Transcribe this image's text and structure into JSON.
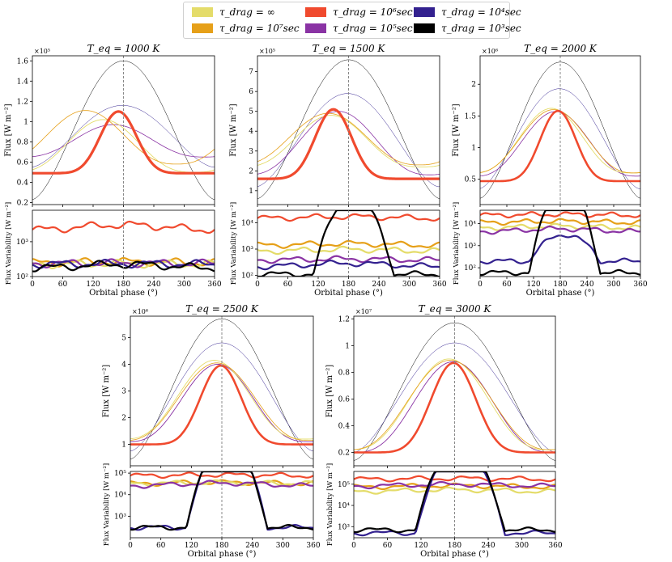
{
  "legend": {
    "entries": [
      {
        "name": "tau_inf",
        "label": "τ_drag = ∞",
        "color": "#e4dc6a"
      },
      {
        "name": "tau_1e7",
        "label": "τ_drag = 10⁷sec",
        "color": "#e6a019"
      },
      {
        "name": "tau_1e6",
        "label": "τ_drag = 10⁶sec",
        "color": "#f04a2e"
      },
      {
        "name": "tau_1e5",
        "label": "τ_drag = 10⁵sec",
        "color": "#8a33a4"
      },
      {
        "name": "tau_1e4",
        "label": "τ_drag = 10⁴sec",
        "color": "#33218f"
      },
      {
        "name": "tau_1e3",
        "label": "τ_drag = 10³sec",
        "color": "#000000"
      }
    ]
  },
  "chart_data": [
    {
      "type": "line",
      "panel": "flux",
      "title": "T_eq = 1000 K",
      "ylabel": "Flux [W m⁻²]",
      "xlabel": "",
      "multiplier": "×10⁵",
      "xlim": [
        0,
        360
      ],
      "ylim": [
        0.18,
        1.65
      ],
      "xticks": [
        "0",
        "60",
        "120",
        "180",
        "240",
        "300",
        "360"
      ],
      "yticks": [
        0.2,
        0.4,
        0.6,
        0.8,
        1.0,
        1.2,
        1.4,
        1.6
      ],
      "vline": 180,
      "series": [
        {
          "name": "τ=10³",
          "color": "#000000",
          "min": 0.23,
          "max": 1.6,
          "peak": 180,
          "width": 0.5
        },
        {
          "name": "τ=10⁴",
          "color": "#33218f",
          "min": 0.55,
          "max": 1.16,
          "peak": 178,
          "width": 0.5
        },
        {
          "name": "τ=10⁵",
          "color": "#8a33a4",
          "min": 0.65,
          "max": 0.97,
          "peak": 160,
          "width": 0.8
        },
        {
          "name": "τ=∞",
          "color": "#e4dc6a",
          "min": 0.5,
          "max": 1.02,
          "peak": 140,
          "width": 0.9
        },
        {
          "name": "τ=10⁷",
          "color": "#e6a019",
          "min": 0.58,
          "max": 1.11,
          "peak": 105,
          "width": 0.8
        },
        {
          "name": "τ=10⁶",
          "color": "#f04a2e",
          "min": 0.49,
          "max": 1.1,
          "peak": 170,
          "width": 3.2
        }
      ]
    },
    {
      "type": "line",
      "panel": "variability",
      "title": "",
      "ylabel": "Flux Variability [W m⁻²]",
      "xlabel": "Orbital phase (°)",
      "xlim": [
        0,
        360
      ],
      "ylim": [
        100,
        8000
      ],
      "scale": "log",
      "xticks": [
        "0",
        "60",
        "120",
        "180",
        "240",
        "300",
        "360"
      ],
      "yticks": [
        {
          "v": 100,
          "label": "10²"
        },
        {
          "v": 1000,
          "label": "10³"
        }
      ],
      "vline": 180,
      "series": [
        {
          "name": "τ=10⁶",
          "color": "#f04a2e",
          "base": 2600,
          "amp": 0.7,
          "width": 2.2
        },
        {
          "name": "τ=10⁷",
          "color": "#e6a019",
          "base": 260,
          "amp": 0.15,
          "width": 2.2
        },
        {
          "name": "τ=∞",
          "color": "#e4dc6a",
          "base": 230,
          "amp": 0.1,
          "width": 2.2
        },
        {
          "name": "τ=10⁵",
          "color": "#8a33a4",
          "base": 240,
          "amp": 0.05,
          "width": 2.2
        },
        {
          "name": "τ=10⁴",
          "color": "#33218f",
          "base": 230,
          "amp": 0.05,
          "width": 2.2
        },
        {
          "name": "τ=10³",
          "color": "#000000",
          "base": 200,
          "amp": 0.5,
          "width": 2.2
        }
      ]
    },
    {
      "type": "line",
      "panel": "flux",
      "title": "T_eq = 1500 K",
      "ylabel": "Flux [W m⁻²]",
      "xlabel": "",
      "multiplier": "×10⁵",
      "xlim": [
        0,
        360
      ],
      "ylim": [
        0.3,
        7.8
      ],
      "xticks": [
        "0",
        "60",
        "120",
        "180",
        "240",
        "300",
        "360"
      ],
      "yticks": [
        1,
        2,
        3,
        4,
        5,
        6,
        7
      ],
      "vline": 180,
      "series": [
        {
          "name": "τ=10³",
          "color": "#000000",
          "min": 0.6,
          "max": 7.6,
          "peak": 180,
          "width": 0.5
        },
        {
          "name": "τ=10⁴",
          "color": "#33218f",
          "min": 1.2,
          "max": 5.9,
          "peak": 178,
          "width": 0.5
        },
        {
          "name": "τ=10⁵",
          "color": "#8a33a4",
          "min": 1.8,
          "max": 5.0,
          "peak": 160,
          "width": 0.8
        },
        {
          "name": "τ=∞",
          "color": "#e4dc6a",
          "min": 2.2,
          "max": 4.8,
          "peak": 145,
          "width": 0.9
        },
        {
          "name": "τ=10⁷",
          "color": "#e6a019",
          "min": 2.3,
          "max": 4.9,
          "peak": 140,
          "width": 0.8
        },
        {
          "name": "τ=10⁶",
          "color": "#f04a2e",
          "min": 1.6,
          "max": 5.1,
          "peak": 150,
          "width": 3.2
        }
      ]
    },
    {
      "type": "line",
      "panel": "variability",
      "title": "",
      "ylabel": "Flux Variability [W m⁻²]",
      "xlabel": "Orbital phase (°)",
      "xlim": [
        0,
        360
      ],
      "ylim": [
        90,
        30000
      ],
      "scale": "log",
      "xticks": [
        "0",
        "60",
        "120",
        "180",
        "240",
        "300",
        "360"
      ],
      "yticks": [
        {
          "v": 100,
          "label": "10²"
        },
        {
          "v": 1000,
          "label": "10³"
        },
        {
          "v": 10000,
          "label": "10⁴"
        }
      ],
      "vline": 180,
      "series": [
        {
          "name": "τ=10⁶",
          "color": "#f04a2e",
          "base": 16000,
          "amp": 0.3,
          "width": 2.2
        },
        {
          "name": "τ=10⁷",
          "color": "#e6a019",
          "base": 1500,
          "amp": 0.3,
          "width": 2.2
        },
        {
          "name": "τ=∞",
          "color": "#e4dc6a",
          "base": 900,
          "amp": 0.3,
          "width": 2.2
        },
        {
          "name": "τ=10⁵",
          "color": "#8a33a4",
          "base": 400,
          "amp": 0.2,
          "width": 2.2
        },
        {
          "name": "τ=10⁴",
          "color": "#33218f",
          "base": 250,
          "amp": 0.6,
          "width": 2.2
        },
        {
          "name": "τ=10³",
          "color": "#000000",
          "base": 110,
          "amp": 3.0,
          "width": 2.2
        }
      ]
    },
    {
      "type": "line",
      "panel": "flux",
      "title": "T_eq = 2000 K",
      "ylabel": "Flux [W m⁻²]",
      "xlabel": "",
      "multiplier": "×10⁶",
      "xlim": [
        0,
        360
      ],
      "ylim": [
        0.1,
        2.45
      ],
      "xticks": [
        "0",
        "60",
        "120",
        "180",
        "240",
        "300",
        "360"
      ],
      "yticks": [
        0.5,
        1.0,
        1.5,
        2.0
      ],
      "vline": 180,
      "series": [
        {
          "name": "τ=10³",
          "color": "#000000",
          "min": 0.2,
          "max": 2.35,
          "peak": 180,
          "width": 0.5
        },
        {
          "name": "τ=10⁴",
          "color": "#33218f",
          "min": 0.35,
          "max": 1.93,
          "peak": 178,
          "width": 0.5
        },
        {
          "name": "τ=10⁵",
          "color": "#8a33a4",
          "min": 0.55,
          "max": 1.57,
          "peak": 170,
          "width": 0.8
        },
        {
          "name": "τ=∞",
          "color": "#e4dc6a",
          "min": 0.6,
          "max": 1.62,
          "peak": 160,
          "width": 0.9
        },
        {
          "name": "τ=10⁷",
          "color": "#e6a019",
          "min": 0.6,
          "max": 1.6,
          "peak": 165,
          "width": 0.8
        },
        {
          "name": "τ=10⁶",
          "color": "#f04a2e",
          "min": 0.47,
          "max": 1.58,
          "peak": 175,
          "width": 2.6
        }
      ]
    },
    {
      "type": "line",
      "panel": "variability",
      "title": "",
      "ylabel": "Flux Variability [W m⁻²]",
      "xlabel": "Orbital phase (°)",
      "xlim": [
        0,
        360
      ],
      "ylim": [
        40,
        40000
      ],
      "scale": "log",
      "xticks": [
        "0",
        "60",
        "120",
        "180",
        "240",
        "300",
        "360"
      ],
      "yticks": [
        {
          "v": 100,
          "label": "10²"
        },
        {
          "v": 1000,
          "label": "10³"
        },
        {
          "v": 10000,
          "label": "10⁴"
        }
      ],
      "vline": 180,
      "series": [
        {
          "name": "τ=10⁶",
          "color": "#f04a2e",
          "base": 25000,
          "amp": 0.2,
          "width": 2.2
        },
        {
          "name": "τ=10⁷",
          "color": "#e6a019",
          "base": 12000,
          "amp": 0.3,
          "width": 2.2
        },
        {
          "name": "τ=∞",
          "color": "#e4dc6a",
          "base": 7000,
          "amp": 0.4,
          "width": 2.2
        },
        {
          "name": "τ=10⁵",
          "color": "#8a33a4",
          "base": 5000,
          "amp": 0.6,
          "width": 2.2
        },
        {
          "name": "τ=10⁴",
          "color": "#33218f",
          "base": 200,
          "amp": 1.2,
          "width": 2.2
        },
        {
          "name": "τ=10³",
          "color": "#000000",
          "base": 60,
          "amp": 4.0,
          "width": 2.2
        }
      ]
    },
    {
      "type": "line",
      "panel": "flux",
      "title": "T_eq = 2500 K",
      "ylabel": "Flux [W m⁻²]",
      "xlabel": "",
      "multiplier": "×10⁶",
      "xlim": [
        0,
        360
      ],
      "ylim": [
        0.2,
        5.8
      ],
      "xticks": [
        "0",
        "60",
        "120",
        "180",
        "240",
        "300",
        "360"
      ],
      "yticks": [
        1,
        2,
        3,
        4,
        5
      ],
      "vline": 180,
      "series": [
        {
          "name": "τ=10³",
          "color": "#000000",
          "min": 0.45,
          "max": 5.7,
          "peak": 180,
          "width": 0.5
        },
        {
          "name": "τ=10⁴",
          "color": "#33218f",
          "min": 0.75,
          "max": 4.8,
          "peak": 180,
          "width": 0.5
        },
        {
          "name": "τ=10⁵",
          "color": "#8a33a4",
          "min": 1.1,
          "max": 4.0,
          "peak": 172,
          "width": 0.9
        },
        {
          "name": "τ=∞",
          "color": "#e4dc6a",
          "min": 1.2,
          "max": 4.15,
          "peak": 165,
          "width": 0.9
        },
        {
          "name": "τ=10⁷",
          "color": "#e6a019",
          "min": 1.15,
          "max": 4.05,
          "peak": 170,
          "width": 0.8
        },
        {
          "name": "τ=10⁶",
          "color": "#f04a2e",
          "min": 1.0,
          "max": 3.95,
          "peak": 178,
          "width": 2.6
        }
      ]
    },
    {
      "type": "line",
      "panel": "variability",
      "title": "",
      "ylabel": "Flux Variability [W m⁻²]",
      "xlabel": "Orbital phase (°)",
      "xlim": [
        0,
        360
      ],
      "ylim": [
        100,
        120000
      ],
      "scale": "log",
      "xticks": [
        "0",
        "60",
        "120",
        "180",
        "240",
        "300",
        "360"
      ],
      "yticks": [
        {
          "v": 1000,
          "label": "10³"
        },
        {
          "v": 10000,
          "label": "10⁴"
        },
        {
          "v": 100000,
          "label": "10⁵"
        }
      ],
      "vline": 180,
      "series": [
        {
          "name": "τ=10⁶",
          "color": "#f04a2e",
          "base": 80000,
          "amp": 0.2,
          "width": 2.2
        },
        {
          "name": "τ=10⁷",
          "color": "#e6a019",
          "base": 35000,
          "amp": 0.3,
          "width": 2.2
        },
        {
          "name": "τ=∞",
          "color": "#e4dc6a",
          "base": 35000,
          "amp": 0.2,
          "width": 2.2
        },
        {
          "name": "τ=10⁵",
          "color": "#8a33a4",
          "base": 30000,
          "amp": 0.6,
          "width": 2.2
        },
        {
          "name": "τ=10⁴",
          "color": "#33218f",
          "base": 300,
          "amp": 4.0,
          "width": 2.2
        },
        {
          "name": "τ=10³",
          "color": "#000000",
          "base": 300,
          "amp": 4.0,
          "width": 2.2
        }
      ]
    },
    {
      "type": "line",
      "panel": "flux",
      "title": "T_eq = 3000 K",
      "ylabel": "Flux [W m⁻²]",
      "xlabel": "",
      "multiplier": "×10⁷",
      "xlim": [
        0,
        360
      ],
      "ylim": [
        0.1,
        1.22
      ],
      "xticks": [
        "0",
        "60",
        "120",
        "180",
        "240",
        "300",
        "360"
      ],
      "yticks": [
        0.2,
        0.4,
        0.6,
        0.8,
        1.0,
        1.2
      ],
      "vline": 180,
      "series": [
        {
          "name": "τ=10³",
          "color": "#000000",
          "min": 0.14,
          "max": 1.17,
          "peak": 180,
          "width": 0.5
        },
        {
          "name": "τ=10⁴",
          "color": "#33218f",
          "min": 0.2,
          "max": 1.02,
          "peak": 180,
          "width": 0.5
        },
        {
          "name": "τ=10⁵",
          "color": "#8a33a4",
          "min": 0.2,
          "max": 0.88,
          "peak": 178,
          "width": 0.9
        },
        {
          "name": "τ=∞",
          "color": "#e4dc6a",
          "min": 0.22,
          "max": 0.9,
          "peak": 170,
          "width": 0.9
        },
        {
          "name": "τ=10⁷",
          "color": "#e6a019",
          "min": 0.22,
          "max": 0.89,
          "peak": 172,
          "width": 0.8
        },
        {
          "name": "τ=10⁶",
          "color": "#f04a2e",
          "min": 0.2,
          "max": 0.87,
          "peak": 178,
          "width": 2.6
        }
      ]
    },
    {
      "type": "line",
      "panel": "variability",
      "title": "",
      "ylabel": "Flux Variability [W m⁻²]",
      "xlabel": "Orbital phase (°)",
      "xlim": [
        0,
        360
      ],
      "ylim": [
        300,
        400000
      ],
      "scale": "log",
      "xticks": [
        "0",
        "60",
        "120",
        "180",
        "240",
        "300",
        "360"
      ],
      "yticks": [
        {
          "v": 1000,
          "label": "10³"
        },
        {
          "v": 10000,
          "label": "10⁴"
        },
        {
          "v": 100000,
          "label": "10⁵"
        }
      ],
      "vline": 180,
      "series": [
        {
          "name": "τ=10⁶",
          "color": "#f04a2e",
          "base": 180000,
          "amp": 0.2,
          "width": 2.2
        },
        {
          "name": "τ=10⁷",
          "color": "#e6a019",
          "base": 80000,
          "amp": 0.3,
          "width": 2.2
        },
        {
          "name": "τ=∞",
          "color": "#e4dc6a",
          "base": 50000,
          "amp": 0.4,
          "width": 2.2
        },
        {
          "name": "τ=10⁵",
          "color": "#8a33a4",
          "base": 90000,
          "amp": 0.4,
          "width": 2.2
        },
        {
          "name": "τ=10⁴",
          "color": "#33218f",
          "base": 500,
          "amp": 4.0,
          "width": 2.2
        },
        {
          "name": "τ=10³",
          "color": "#000000",
          "base": 700,
          "amp": 4.0,
          "width": 2.2
        }
      ]
    }
  ]
}
